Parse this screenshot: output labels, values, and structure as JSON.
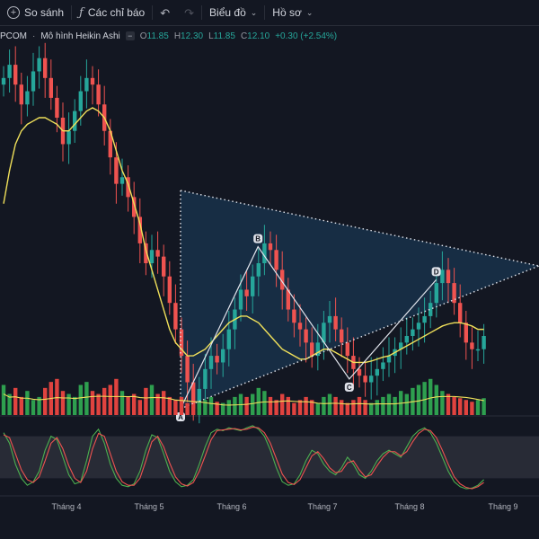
{
  "toolbar": {
    "add_icon": "plus-circle-icon",
    "compare_label": "So sánh",
    "indicator_icon": "fx-icon",
    "indicators_label": "Các chỉ báo",
    "undo_icon": "undo-icon",
    "chart_menu_label": "Biểu đồ",
    "profile_menu_label": "Hồ sơ",
    "chevron_icon": "chevron-down-icon"
  },
  "legend": {
    "symbol": "PCOM",
    "separator": "·",
    "chart_style": "Mô hình Heikin Ashi",
    "o_label": "O",
    "o_value": "11.85",
    "h_label": "H",
    "h_value": "12.30",
    "l_label": "L",
    "l_value": "11.85",
    "c_label": "C",
    "c_value": "12.10",
    "change": "+0.30 (+2.54%)"
  },
  "colors": {
    "up": "#26a69a",
    "down": "#ef5350",
    "vol_up": "#2e9f4f",
    "vol_down": "#e0433f",
    "ma": "#f0e05a",
    "stoch_k": "#4caf50",
    "stoch_d": "#ef5350",
    "triangle_fill": "#1a3550",
    "background": "#131722"
  },
  "chart_data": {
    "type": "candlestick",
    "chart_style": "Heikin Ashi",
    "x_ticks": [
      "Tháng 4",
      "Tháng 5",
      "Tháng 6",
      "Tháng 7",
      "Tháng 8",
      "Tháng 9"
    ],
    "price_range": [
      11.0,
      16.5
    ],
    "candles_close": [
      16.0,
      16.2,
      15.9,
      15.6,
      15.8,
      16.1,
      16.3,
      16.0,
      15.7,
      15.4,
      15.0,
      15.2,
      15.5,
      15.8,
      16.0,
      15.9,
      15.6,
      15.2,
      14.8,
      14.4,
      14.5,
      14.2,
      13.9,
      13.5,
      13.2,
      13.4,
      13.3,
      13.0,
      12.6,
      12.2,
      11.8,
      11.4,
      11.0,
      11.3,
      11.6,
      11.8,
      11.7,
      11.9,
      12.2,
      12.5,
      12.8,
      12.7,
      13.0,
      13.2,
      13.5,
      13.4,
      13.1,
      12.8,
      12.5,
      12.3,
      12.2,
      12.0,
      11.8,
      12.0,
      12.3,
      12.4,
      12.2,
      12.0,
      11.8,
      11.6,
      11.5,
      11.4,
      11.5,
      11.6,
      11.7,
      11.8,
      11.9,
      12.0,
      12.1,
      12.2,
      12.3,
      12.4,
      12.6,
      12.9,
      13.1,
      12.9,
      12.6,
      12.3,
      12.0,
      11.9,
      11.9,
      12.1
    ],
    "ma_series": [
      14.1,
      14.6,
      15.0,
      15.2,
      15.3,
      15.35,
      15.4,
      15.4,
      15.35,
      15.3,
      15.2,
      15.2,
      15.3,
      15.4,
      15.5,
      15.55,
      15.5,
      15.4,
      15.2,
      14.9,
      14.6,
      14.4,
      14.1,
      13.8,
      13.4,
      13.1,
      12.8,
      12.5,
      12.2,
      12.0,
      11.9,
      11.8,
      11.8,
      11.85,
      11.9,
      12.0,
      12.1,
      12.2,
      12.3,
      12.35,
      12.4,
      12.4,
      12.35,
      12.3,
      12.2,
      12.1,
      12.0,
      11.9,
      11.85,
      11.8,
      11.75,
      11.75,
      11.8,
      11.85,
      11.9,
      11.9,
      11.85,
      11.8,
      11.75,
      11.7,
      11.7,
      11.7,
      11.72,
      11.75,
      11.78,
      11.8,
      11.85,
      11.9,
      11.95,
      12.0,
      12.05,
      12.1,
      12.15,
      12.2,
      12.25,
      12.28,
      12.3,
      12.3,
      12.28,
      12.25,
      12.2,
      12.2
    ],
    "pattern_points": [
      {
        "label": "A",
        "price": 11.0
      },
      {
        "label": "B",
        "price": 13.45
      },
      {
        "label": "C",
        "price": 11.45
      },
      {
        "label": "D",
        "price": 12.95
      }
    ],
    "volume_range": [
      0,
      1
    ],
    "volume": [
      0.5,
      0.35,
      0.45,
      0.3,
      0.4,
      0.25,
      0.3,
      0.45,
      0.55,
      0.6,
      0.4,
      0.35,
      0.3,
      0.5,
      0.55,
      0.4,
      0.35,
      0.45,
      0.5,
      0.6,
      0.4,
      0.3,
      0.35,
      0.25,
      0.45,
      0.5,
      0.35,
      0.4,
      0.3,
      0.25,
      0.3,
      0.2,
      0.18,
      0.2,
      0.25,
      0.3,
      0.22,
      0.2,
      0.25,
      0.3,
      0.35,
      0.3,
      0.35,
      0.45,
      0.4,
      0.3,
      0.25,
      0.35,
      0.3,
      0.2,
      0.25,
      0.3,
      0.25,
      0.2,
      0.3,
      0.35,
      0.3,
      0.25,
      0.2,
      0.25,
      0.3,
      0.25,
      0.2,
      0.25,
      0.3,
      0.35,
      0.3,
      0.4,
      0.35,
      0.45,
      0.5,
      0.55,
      0.6,
      0.5,
      0.4,
      0.35,
      0.3,
      0.28,
      0.25,
      0.22,
      0.25,
      0.28
    ],
    "stoch_range": [
      0,
      100
    ],
    "stoch_band": [
      20,
      80
    ],
    "stoch_k": [
      85,
      70,
      40,
      20,
      10,
      15,
      30,
      60,
      80,
      75,
      50,
      25,
      12,
      15,
      45,
      80,
      90,
      70,
      40,
      20,
      10,
      8,
      12,
      30,
      60,
      82,
      78,
      55,
      30,
      15,
      8,
      10,
      18,
      40,
      65,
      85,
      90,
      88,
      92,
      90,
      88,
      92,
      95,
      90,
      80,
      60,
      35,
      15,
      10,
      12,
      25,
      45,
      60,
      55,
      40,
      30,
      25,
      35,
      50,
      40,
      25,
      20,
      30,
      45,
      55,
      60,
      55,
      50,
      65,
      80,
      88,
      92,
      85,
      70,
      50,
      30,
      15,
      8,
      5,
      6,
      10,
      18
    ],
    "stoch_d": [
      82,
      78,
      55,
      32,
      18,
      14,
      22,
      45,
      70,
      78,
      62,
      38,
      20,
      14,
      30,
      62,
      84,
      80,
      55,
      30,
      15,
      10,
      10,
      20,
      45,
      72,
      80,
      65,
      42,
      22,
      12,
      9,
      14,
      30,
      52,
      75,
      88,
      89,
      90,
      91,
      89,
      90,
      93,
      92,
      85,
      70,
      48,
      26,
      14,
      11,
      18,
      35,
      52,
      58,
      48,
      35,
      28,
      30,
      42,
      45,
      32,
      22,
      25,
      38,
      50,
      58,
      58,
      52,
      58,
      72,
      84,
      90,
      88,
      78,
      60,
      40,
      22,
      12,
      7,
      5,
      8,
      14
    ]
  }
}
